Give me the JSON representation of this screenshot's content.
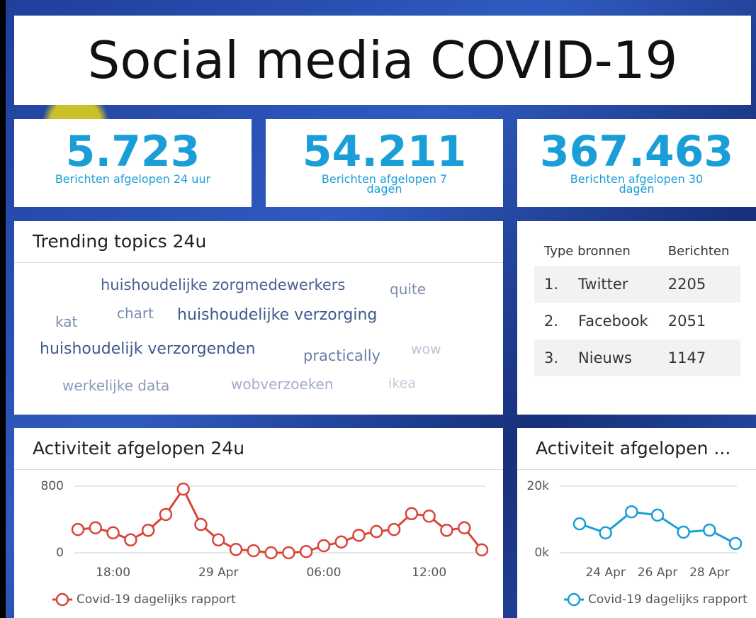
{
  "header": {
    "title": "Social media COVID-19"
  },
  "stats": [
    {
      "value": "5.723",
      "label": "Berichten afgelopen 24 uur"
    },
    {
      "value": "54.211",
      "label": "Berichten afgelopen 7 dagen"
    },
    {
      "value": "367.463",
      "label": "Berichten afgelopen 30 dagen"
    }
  ],
  "trending": {
    "title": "Trending topics 24u",
    "words": [
      "huishoudelijke zorgmedewerkers",
      "quite",
      "kat",
      "chart",
      "huishoudelijke verzorging",
      "huishoudelijk verzorgenden",
      "practically",
      "wow",
      "werkelijke data",
      "wobverzoeken",
      "ikea"
    ]
  },
  "sources": {
    "header": [
      "Type bronnen",
      "Berichten"
    ],
    "rows": [
      [
        "1.",
        "Twitter",
        "2205"
      ],
      [
        "2.",
        "Facebook",
        "2051"
      ],
      [
        "3.",
        "Nieuws",
        "1147"
      ]
    ]
  },
  "chart_data": [
    {
      "type": "line",
      "title": "Activiteit afgelopen 24u",
      "categories": [
        null,
        null,
        "18:00",
        null,
        null,
        null,
        null,
        null,
        "29 Apr",
        null,
        null,
        null,
        null,
        null,
        "06:00",
        null,
        null,
        null,
        null,
        null,
        "12:00",
        null,
        null,
        null
      ],
      "series": [
        {
          "name": "Covid-19 dagelijks rapport",
          "color": "#d9443a",
          "values": [
            280,
            300,
            240,
            155,
            270,
            460,
            765,
            340,
            155,
            40,
            25,
            0,
            0,
            15,
            85,
            130,
            210,
            255,
            280,
            470,
            440,
            270,
            300,
            35
          ]
        }
      ],
      "ylim": [
        0,
        800
      ],
      "yticks": [
        0,
        800
      ],
      "grid": true
    },
    {
      "type": "line",
      "title": "Activiteit afgelopen ...",
      "categories": [
        null,
        "24 Apr",
        null,
        "26 Apr",
        null,
        "28 Apr",
        null
      ],
      "series": [
        {
          "name": "Covid-19 dagelijks rapport",
          "color": "#1a9ed8",
          "values": [
            8700,
            6000,
            12300,
            11300,
            6200,
            6800,
            2800
          ]
        }
      ],
      "ylim": [
        0,
        20000
      ],
      "yticks": [
        {
          "value": 0,
          "label": "0k"
        },
        {
          "value": 20000,
          "label": "20k"
        }
      ],
      "grid": true
    }
  ]
}
